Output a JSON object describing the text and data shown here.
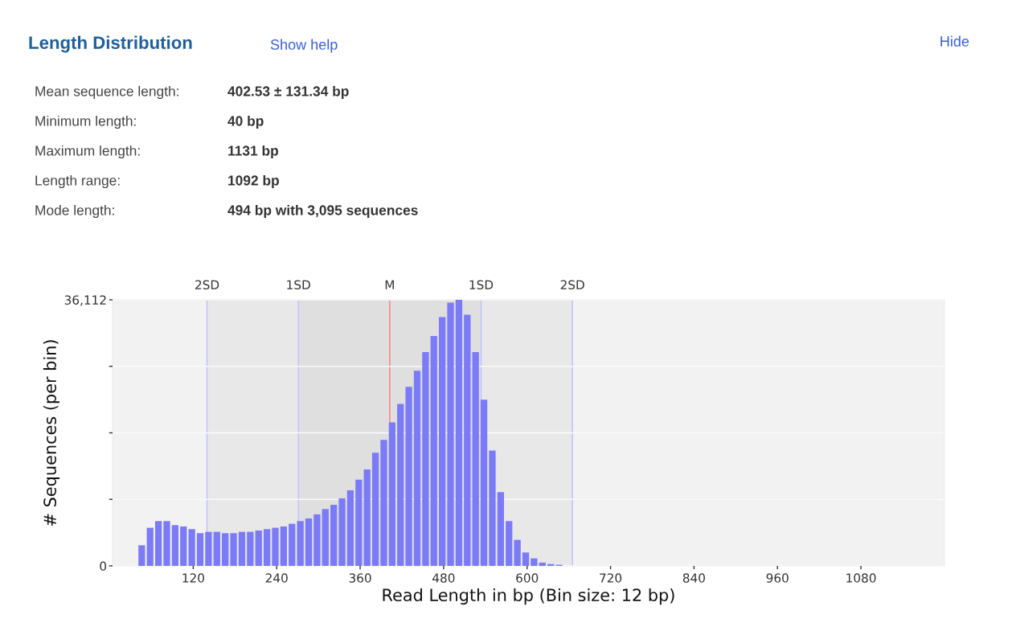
{
  "chart_data": {
    "type": "histogram",
    "title": "Length Distribution",
    "xlabel": "Read Length in bp (Bin size: 12 bp)",
    "ylabel": "# Sequences (per bin)",
    "annotations": [
      "Show help",
      "Hide",
      "Mean sequence length:",
      "402.53 ± 131.34 bp",
      "Minimum length:",
      "40 bp",
      "Maximum length:",
      "1131 bp",
      "Length range:",
      "1092 bp",
      "Mode length:",
      "494 bp with 3,095 sequences"
    ],
    "bins": [
      40,
      52,
      64,
      76,
      88,
      100,
      112,
      124,
      136,
      148,
      160,
      172,
      184,
      196,
      208,
      220,
      232,
      244,
      256,
      268,
      280,
      292,
      304,
      316,
      328,
      340,
      352,
      364,
      376,
      388,
      400,
      412,
      424,
      436,
      448,
      460,
      472,
      484,
      496,
      508,
      520,
      532,
      544,
      556,
      568,
      580,
      592,
      604,
      616,
      628,
      640,
      652
    ],
    "values": [
      2800,
      5170,
      6080,
      6080,
      5530,
      5350,
      4990,
      4440,
      4620,
      4620,
      4440,
      4440,
      4620,
      4620,
      4800,
      4990,
      5170,
      5350,
      5710,
      6080,
      6440,
      6990,
      7710,
      8290,
      9170,
      10260,
      11710,
      13090,
      15350,
      17090,
      19460,
      21970,
      24300,
      26480,
      29020,
      31210,
      33750,
      35720,
      36112,
      34080,
      29020,
      22550,
      15640,
      10000,
      6080,
      3530,
      1820,
      1020,
      440,
      250,
      150
    ],
    "color": "#7b7bf7",
    "xlim": [
      4,
      1200
    ],
    "xticks": [
      120,
      240,
      360,
      480,
      600,
      720,
      840,
      960,
      1080
    ],
    "ylim": [
      0,
      36112
    ],
    "yticks": [
      0,
      {
        "value": 9028,
        "label": null
      },
      {
        "value": 18056,
        "label": null
      },
      {
        "value": 27084,
        "label": null
      },
      {
        "value": 36112,
        "label": "36,112"
      }
    ],
    "grid": "y",
    "bands": [
      {
        "axis": "x",
        "from": 139.85,
        "to": 665.21,
        "color": "#e8e8e8"
      },
      {
        "axis": "x",
        "from": 271.19,
        "to": 533.87,
        "color": "#dfdfdf"
      }
    ],
    "ref_lines": [
      {
        "axis": "x",
        "value": 139.85,
        "label": "2SD",
        "color": "#c4c4ff"
      },
      {
        "axis": "x",
        "value": 271.19,
        "label": "1SD",
        "color": "#c4c4ff"
      },
      {
        "axis": "x",
        "value": 402.53,
        "label": "M",
        "color": "#ff8888"
      },
      {
        "axis": "x",
        "value": 533.87,
        "label": "1SD",
        "color": "#c4c4ff"
      },
      {
        "axis": "x",
        "value": 665.21,
        "label": "2SD",
        "color": "#c4c4ff"
      }
    ]
  }
}
